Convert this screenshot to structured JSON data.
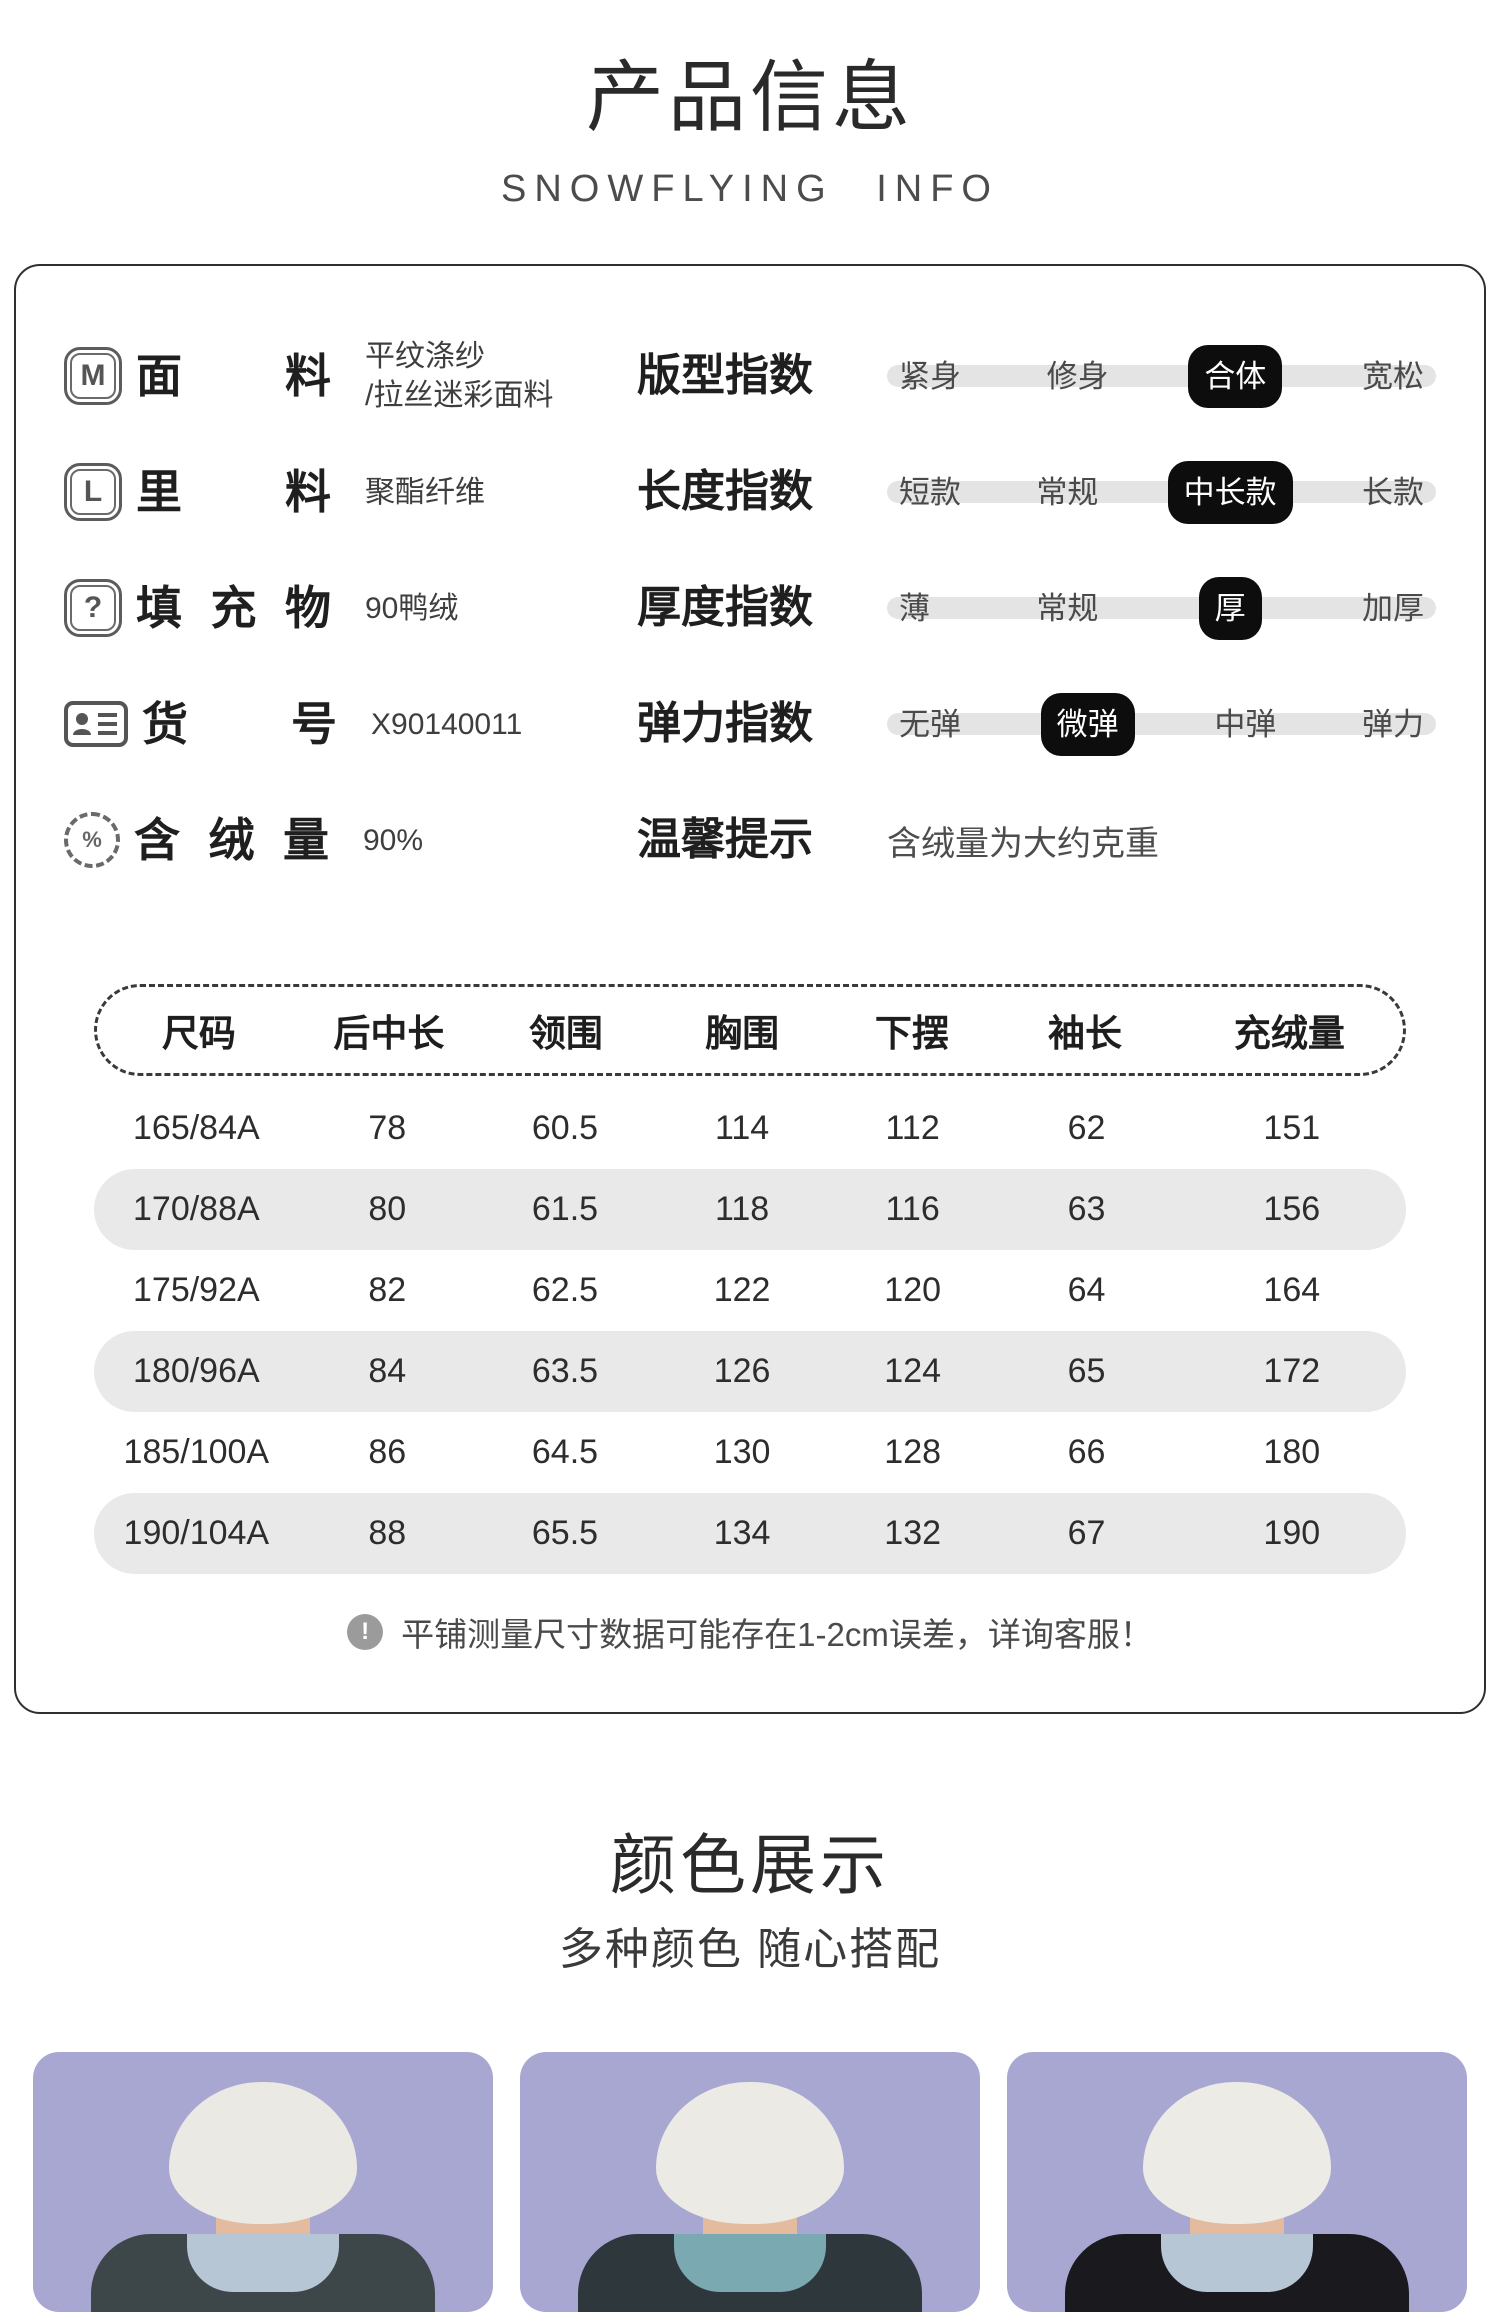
{
  "header": {
    "title": "产品信息",
    "subtitle": "SNOWFLYING INFO"
  },
  "attributes": [
    {
      "icon": "m-badge-icon",
      "glyph": "M",
      "label": "面料",
      "value": "平纹涤纱\n/拉丝迷彩面料"
    },
    {
      "icon": "l-badge-icon",
      "glyph": "L",
      "label": "里料",
      "value": "聚酯纤维"
    },
    {
      "icon": "question-badge-icon",
      "glyph": "?",
      "label": "填充物",
      "value": "90鸭绒"
    },
    {
      "icon": "id-card-icon",
      "glyph": "",
      "label": "货号",
      "value": "X90140011"
    },
    {
      "icon": "percent-cycle-icon",
      "glyph": "%",
      "label": "含绒量",
      "value": "90%"
    }
  ],
  "indices": [
    {
      "label": "版型指数",
      "options": [
        "紧身",
        "修身",
        "合体",
        "宽松"
      ],
      "selected": 2
    },
    {
      "label": "长度指数",
      "options": [
        "短款",
        "常规",
        "中长款",
        "长款"
      ],
      "selected": 2
    },
    {
      "label": "厚度指数",
      "options": [
        "薄",
        "常规",
        "厚",
        "加厚"
      ],
      "selected": 2
    },
    {
      "label": "弹力指数",
      "options": [
        "无弹",
        "微弹",
        "中弹",
        "弹力"
      ],
      "selected": 1
    }
  ],
  "tip": {
    "label": "温馨提示",
    "value": "含绒量为大约克重"
  },
  "size_table": {
    "columns": [
      "尺码",
      "后中长",
      "领围",
      "胸围",
      "下摆",
      "袖长",
      "充绒量"
    ],
    "rows": [
      [
        "165/84A",
        "78",
        "60.5",
        "114",
        "112",
        "62",
        "151"
      ],
      [
        "170/88A",
        "80",
        "61.5",
        "118",
        "116",
        "63",
        "156"
      ],
      [
        "175/92A",
        "82",
        "62.5",
        "122",
        "120",
        "64",
        "164"
      ],
      [
        "180/96A",
        "84",
        "63.5",
        "126",
        "124",
        "65",
        "172"
      ],
      [
        "185/100A",
        "86",
        "64.5",
        "130",
        "128",
        "66",
        "180"
      ],
      [
        "190/104A",
        "88",
        "65.5",
        "134",
        "132",
        "67",
        "190"
      ]
    ],
    "note": "平铺测量尺寸数据可能存在1-2cm误差，详询客服！",
    "note_icon": "!"
  },
  "color_section": {
    "title": "颜色展示",
    "subtitle": "多种颜色 随心搭配"
  },
  "color_cards": [
    {
      "background": "#a8a7d1",
      "hat": "#ebe9e3",
      "jacket": "#3d4649",
      "hood": "#b7c6d4"
    },
    {
      "background": "#a8a7d1",
      "hat": "#eceae4",
      "jacket": "#2e383c",
      "hood": "#7ba9b2"
    },
    {
      "background": "#a8a7d1",
      "hat": "#edebe5",
      "jacket": "#1a1a1e",
      "hood": "#b7c6d4"
    }
  ],
  "theme": {
    "selected_pill": "#0d0d0d",
    "track_gray": "#e4e4e4",
    "row_gray": "#e9e9e9",
    "box_border": "#2f2f2f"
  }
}
